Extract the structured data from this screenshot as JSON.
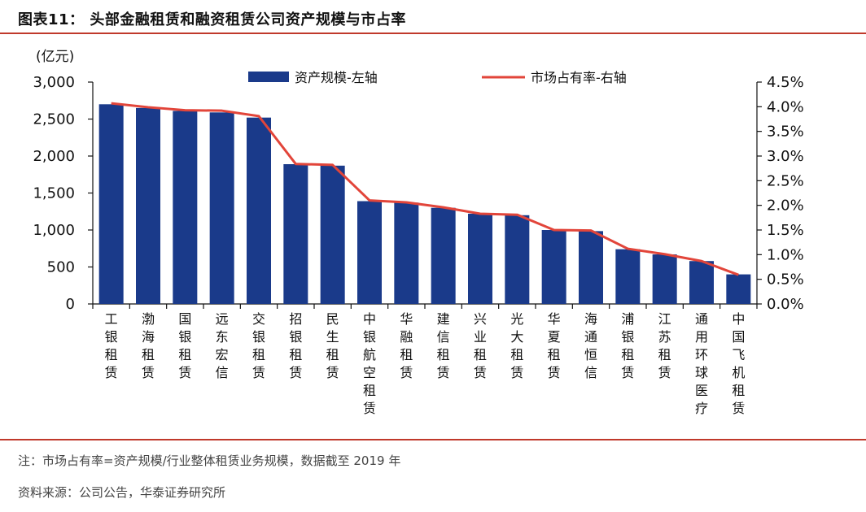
{
  "header": {
    "title": "图表11： 头部金融租赁和融资租赁公司资产规模与市占率"
  },
  "footer": {
    "note": "注：市场占有率=资产规模/行业整体租赁业务规模，数据截至 2019 年",
    "source": "资料来源：公司公告，华泰证券研究所"
  },
  "colors": {
    "bar": "#1a3a8a",
    "line": "#e2453a",
    "rule": "#c0392b"
  },
  "chart_data": {
    "type": "bar",
    "categories": [
      "工银租赁",
      "渤海租赁",
      "国银租赁",
      "远东宏信",
      "交银租赁",
      "招银租赁",
      "民生租赁",
      "中银航空租赁",
      "华融租赁",
      "建信租赁",
      "兴业租赁",
      "光大租赁",
      "华夏租赁",
      "海通恒信",
      "浦银租赁",
      "江苏租赁",
      "通用环球医疗",
      "中国飞机租赁"
    ],
    "series": [
      {
        "name": "资产规模-左轴",
        "axis": "left",
        "chart": "bar",
        "values": [
          2700,
          2650,
          2610,
          2590,
          2520,
          1890,
          1870,
          1390,
          1370,
          1300,
          1220,
          1200,
          1000,
          985,
          740,
          670,
          580,
          400
        ]
      },
      {
        "name": "市场占有率-右轴",
        "axis": "right",
        "chart": "line",
        "unit": "%",
        "values": [
          4.07,
          3.99,
          3.93,
          3.92,
          3.81,
          2.84,
          2.82,
          2.1,
          2.06,
          1.96,
          1.83,
          1.81,
          1.5,
          1.49,
          1.12,
          1.01,
          0.87,
          0.59
        ]
      }
    ],
    "ylabel_left": "(亿元)",
    "ylim_left": [
      0,
      3000
    ],
    "yticks_left": [
      "0",
      "500",
      "1,000",
      "1,500",
      "2,000",
      "2,500",
      "3,000"
    ],
    "ylim_right": [
      0,
      4.5
    ],
    "yticks_right": [
      "0.0%",
      "0.5%",
      "1.0%",
      "1.5%",
      "2.0%",
      "2.5%",
      "3.0%",
      "3.5%",
      "4.0%",
      "4.5%"
    ],
    "legend_position": "top",
    "grid": false
  }
}
